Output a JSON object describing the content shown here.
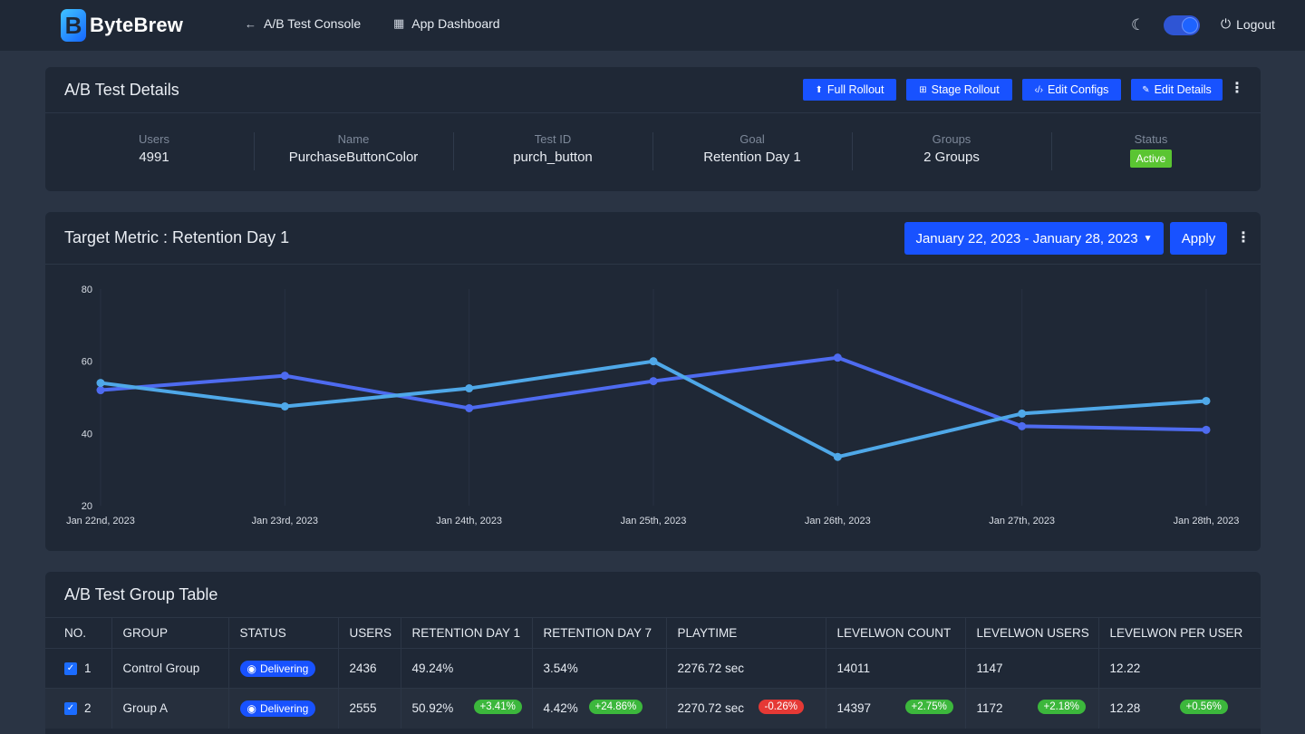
{
  "app": {
    "logo_text": "ByteBrew",
    "logo_mark": "B"
  },
  "nav": {
    "back_label": "A/B Test Console",
    "dashboard_label": "App Dashboard",
    "logout_label": "Logout"
  },
  "details": {
    "title": "A/B Test Details",
    "actions": {
      "full_rollout": "Full Rollout",
      "stage_rollout": "Stage Rollout",
      "edit_configs": "Edit Configs",
      "edit_details": "Edit Details"
    },
    "stats": [
      {
        "label": "Users",
        "value": "4991"
      },
      {
        "label": "Name",
        "value": "PurchaseButtonColor"
      },
      {
        "label": "Test ID",
        "value": "purch_button"
      },
      {
        "label": "Goal",
        "value": "Retention Day 1"
      },
      {
        "label": "Groups",
        "value": "2 Groups"
      },
      {
        "label": "Status",
        "value": "Active"
      }
    ]
  },
  "metric": {
    "title": "Target Metric : Retention Day 1",
    "date_range": "January 22, 2023 - January 28, 2023",
    "apply_label": "Apply"
  },
  "chart_data": {
    "type": "line",
    "categories": [
      "Jan 22nd, 2023",
      "Jan 23rd, 2023",
      "Jan 24th, 2023",
      "Jan 25th, 2023",
      "Jan 26th, 2023",
      "Jan 27th, 2023",
      "Jan 28th, 2023"
    ],
    "series": [
      {
        "color": "#4e6bf0",
        "values": [
          52,
          56,
          47,
          54.5,
          61,
          42,
          41
        ]
      },
      {
        "color": "#4fa8e8",
        "values": [
          54,
          47.5,
          52.5,
          60,
          33.5,
          45.5,
          49
        ]
      }
    ],
    "yticks": [
      20,
      40,
      60,
      80
    ],
    "ylim": [
      20,
      80
    ],
    "grid": "vertical"
  },
  "table": {
    "title": "A/B Test Group Table",
    "headers": [
      "NO.",
      "GROUP",
      "STATUS",
      "USERS",
      "RETENTION DAY 1",
      "RETENTION DAY 7",
      "PLAYTIME",
      "LEVELWON COUNT",
      "LEVELWON USERS",
      "LEVELWON PER USER"
    ],
    "rows": [
      {
        "no": "1",
        "group": "Control Group",
        "status": "Delivering",
        "users": "2436",
        "ret1": "49.24%",
        "ret7": "3.54%",
        "playtime": "2276.72 sec",
        "lw_count": "14011",
        "lw_users": "1147",
        "lw_per_user": "12.22"
      },
      {
        "no": "2",
        "group": "Group A",
        "status": "Delivering",
        "users": "2555",
        "ret1": "50.92%",
        "ret1_delta": "+3.41%",
        "ret7": "4.42%",
        "ret7_delta": "+24.86%",
        "playtime": "2270.72 sec",
        "playtime_delta": "-0.26%",
        "lw_count": "14397",
        "lw_count_delta": "+2.75%",
        "lw_users": "1172",
        "lw_users_delta": "+2.18%",
        "lw_per_user": "12.28",
        "lw_per_user_delta": "+0.56%"
      }
    ]
  }
}
